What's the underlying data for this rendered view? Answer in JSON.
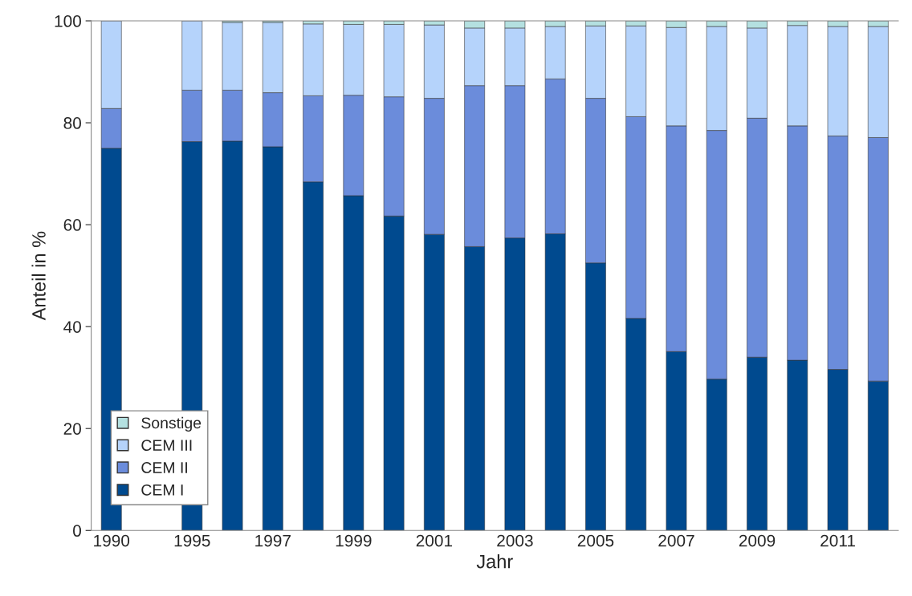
{
  "chart_data": {
    "type": "bar",
    "stacked": true,
    "xlabel": "Jahr",
    "ylabel": "Anteil in %",
    "categories": [
      "1990",
      null,
      "1995",
      null,
      "1997",
      null,
      "1999",
      null,
      "2001",
      null,
      "2003",
      null,
      "2005",
      null,
      "2007",
      null,
      "2009",
      null,
      "2011",
      null
    ],
    "series": [
      {
        "name": "CEM I",
        "color": "#004a8f",
        "values": [
          75.0,
          null,
          76.3,
          76.4,
          75.3,
          68.4,
          65.7,
          61.7,
          58.1,
          55.7,
          57.4,
          58.2,
          52.5,
          41.6,
          35.1,
          29.7,
          34.0,
          33.4,
          31.6,
          29.3
        ]
      },
      {
        "name": "CEM II",
        "color": "#6b8cdb",
        "values": [
          7.8,
          null,
          10.1,
          10.0,
          10.6,
          16.9,
          19.7,
          23.4,
          26.7,
          31.6,
          29.9,
          30.4,
          32.3,
          39.6,
          44.3,
          48.8,
          46.9,
          46.0,
          45.8,
          47.8
        ]
      },
      {
        "name": "CEM III",
        "color": "#b5d3fb",
        "values": [
          17.2,
          null,
          13.6,
          13.3,
          13.8,
          14.1,
          13.9,
          14.2,
          14.4,
          11.3,
          11.3,
          10.3,
          14.2,
          17.8,
          19.3,
          20.4,
          17.7,
          19.7,
          21.5,
          21.8
        ]
      },
      {
        "name": "Sonstige",
        "color": "#b4e0e0",
        "values": [
          null,
          null,
          null,
          0.3,
          0.3,
          0.6,
          0.7,
          0.7,
          0.8,
          1.4,
          1.4,
          1.1,
          1.0,
          1.0,
          1.3,
          1.1,
          1.4,
          0.9,
          1.1,
          1.1
        ]
      }
    ],
    "ylim": [
      0,
      100
    ],
    "yticks": [
      0,
      20,
      40,
      60,
      80,
      100
    ],
    "grid": false,
    "legend": "bottom left"
  }
}
